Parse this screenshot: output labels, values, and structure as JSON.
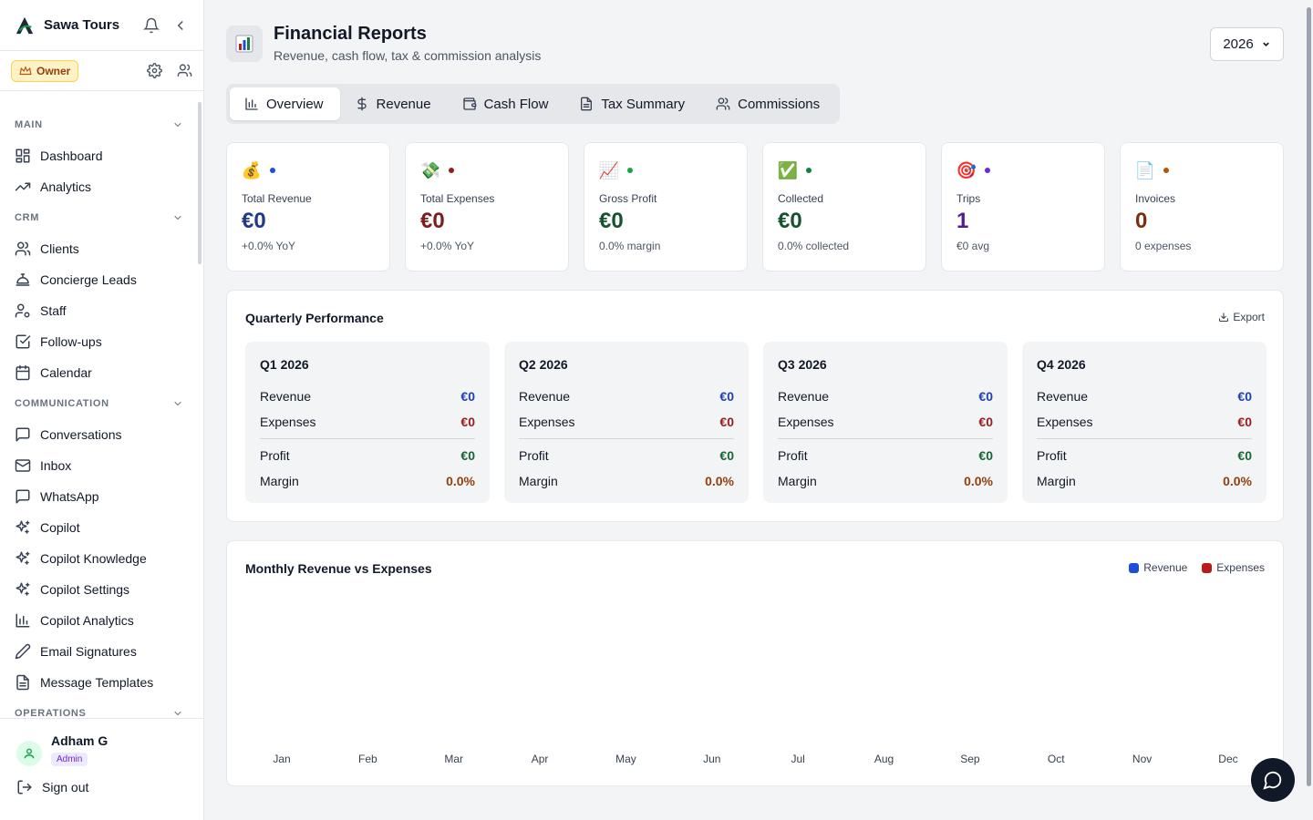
{
  "brand": {
    "name": "Sawa Tours"
  },
  "role": {
    "label": "Owner"
  },
  "sidebar": {
    "sections": [
      {
        "title": "MAIN",
        "items": [
          {
            "label": "Dashboard",
            "icon": "dashboard-icon"
          },
          {
            "label": "Analytics",
            "icon": "trending-up-icon"
          }
        ]
      },
      {
        "title": "CRM",
        "items": [
          {
            "label": "Clients",
            "icon": "users-icon"
          },
          {
            "label": "Concierge Leads",
            "icon": "concierge-bell-icon"
          },
          {
            "label": "Staff",
            "icon": "user-cog-icon"
          },
          {
            "label": "Follow-ups",
            "icon": "check-square-icon"
          },
          {
            "label": "Calendar",
            "icon": "calendar-icon"
          }
        ]
      },
      {
        "title": "COMMUNICATION",
        "items": [
          {
            "label": "Conversations",
            "icon": "message-square-icon"
          },
          {
            "label": "Inbox",
            "icon": "mail-icon"
          },
          {
            "label": "WhatsApp",
            "icon": "whatsapp-icon"
          },
          {
            "label": "Copilot",
            "icon": "sparkles-icon"
          },
          {
            "label": "Copilot Knowledge",
            "icon": "sparkles-icon"
          },
          {
            "label": "Copilot Settings",
            "icon": "sparkles-icon"
          },
          {
            "label": "Copilot Analytics",
            "icon": "bar-chart-icon"
          },
          {
            "label": "Email Signatures",
            "icon": "pen-icon"
          },
          {
            "label": "Message Templates",
            "icon": "file-text-icon"
          }
        ]
      },
      {
        "title": "OPERATIONS",
        "items": []
      }
    ]
  },
  "user": {
    "name": "Adham G",
    "badge": "Admin",
    "signout": "Sign out"
  },
  "page": {
    "title": "Financial Reports",
    "subtitle": "Revenue, cash flow, tax & commission analysis",
    "year": "2026"
  },
  "tabs": [
    {
      "label": "Overview",
      "icon": "bar-chart-icon",
      "active": true
    },
    {
      "label": "Revenue",
      "icon": "dollar-icon"
    },
    {
      "label": "Cash Flow",
      "icon": "wallet-icon"
    },
    {
      "label": "Tax Summary",
      "icon": "file-text-icon"
    },
    {
      "label": "Commissions",
      "icon": "users-icon"
    }
  ],
  "stats": [
    {
      "label": "Total Revenue",
      "value": "€0",
      "sub": "+0.0% YoY",
      "emoji": "💰",
      "color": "#1e3a8a",
      "dot": "#1d4ed8"
    },
    {
      "label": "Total Expenses",
      "value": "€0",
      "sub": "+0.0% YoY",
      "emoji": "💸",
      "color": "#7f1d1d",
      "dot": "#991b1b"
    },
    {
      "label": "Gross Profit",
      "value": "€0",
      "sub": "0.0% margin",
      "emoji": "📈",
      "color": "#14532d",
      "dot": "#16a34a"
    },
    {
      "label": "Collected",
      "value": "€0",
      "sub": "0.0% collected",
      "emoji": "✅",
      "color": "#14532d",
      "dot": "#15803d"
    },
    {
      "label": "Trips",
      "value": "1",
      "sub": "€0 avg",
      "emoji": "🎯",
      "color": "#4c1d95",
      "dot": "#6d28d9"
    },
    {
      "label": "Invoices",
      "value": "0",
      "sub": "0 expenses",
      "emoji": "📄",
      "color": "#7c2d12",
      "dot": "#b45309"
    }
  ],
  "quarterly": {
    "title": "Quarterly Performance",
    "export": "Export",
    "labels": {
      "revenue": "Revenue",
      "expenses": "Expenses",
      "profit": "Profit",
      "margin": "Margin"
    },
    "quarters": [
      {
        "title": "Q1 2026",
        "revenue": "€0",
        "expenses": "€0",
        "profit": "€0",
        "margin": "0.0%"
      },
      {
        "title": "Q2 2026",
        "revenue": "€0",
        "expenses": "€0",
        "profit": "€0",
        "margin": "0.0%"
      },
      {
        "title": "Q3 2026",
        "revenue": "€0",
        "expenses": "€0",
        "profit": "€0",
        "margin": "0.0%"
      },
      {
        "title": "Q4 2026",
        "revenue": "€0",
        "expenses": "€0",
        "profit": "€0",
        "margin": "0.0%"
      }
    ],
    "colors": {
      "revenue": "#1e40af",
      "expenses": "#991b1b",
      "profit": "#166534",
      "margin": "#92400e"
    }
  },
  "monthly": {
    "title": "Monthly Revenue vs Expenses",
    "legend": [
      {
        "label": "Revenue",
        "color": "#1d4ed8"
      },
      {
        "label": "Expenses",
        "color": "#b91c1c"
      }
    ]
  },
  "chart_data": {
    "type": "bar",
    "title": "Monthly Revenue vs Expenses",
    "categories": [
      "Jan",
      "Feb",
      "Mar",
      "Apr",
      "May",
      "Jun",
      "Jul",
      "Aug",
      "Sep",
      "Oct",
      "Nov",
      "Dec"
    ],
    "series": [
      {
        "name": "Revenue",
        "values": [
          0,
          0,
          0,
          0,
          0,
          0,
          0,
          0,
          0,
          0,
          0,
          0
        ]
      },
      {
        "name": "Expenses",
        "values": [
          0,
          0,
          0,
          0,
          0,
          0,
          0,
          0,
          0,
          0,
          0,
          0
        ]
      }
    ],
    "legend": "top-right",
    "grid": false
  }
}
